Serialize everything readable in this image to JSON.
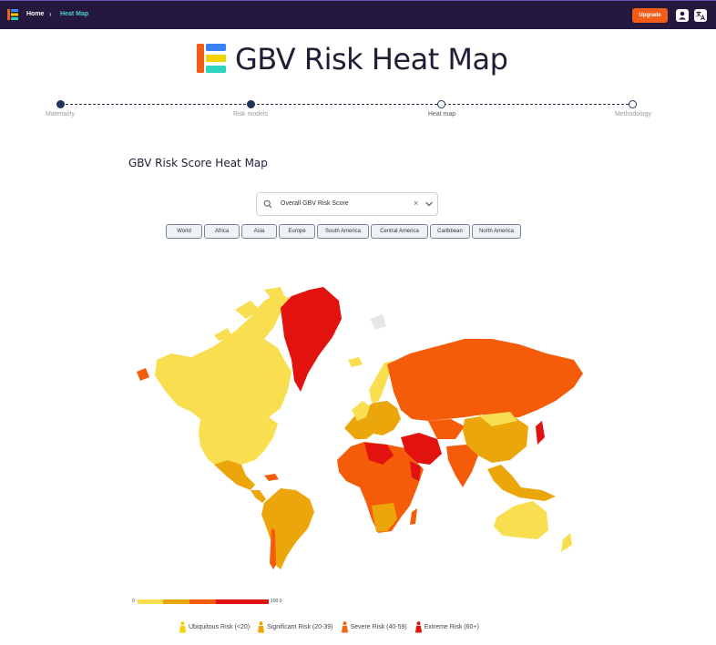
{
  "nav": {
    "home_label": "Home",
    "separator": "›",
    "current_label": "Heat Map",
    "upgrade_label": "Upgrade"
  },
  "page": {
    "title": "GBV Risk Heat Map",
    "section_title": "GBV Risk Score Heat Map"
  },
  "stepper": {
    "steps": [
      {
        "label": "Materiality",
        "state": "done"
      },
      {
        "label": "Risk models",
        "state": "done"
      },
      {
        "label": "Heat map",
        "state": "current"
      },
      {
        "label": "Methodology",
        "state": "todo"
      }
    ]
  },
  "select": {
    "value": "Overall GBV Risk Score",
    "clear_symbol": "×"
  },
  "regions": [
    "World",
    "Africa",
    "Asia",
    "Europe",
    "South America",
    "Central America",
    "Caribbean",
    "North America"
  ],
  "scale": {
    "min_label": "0",
    "max_label": "100.0",
    "colors": [
      "#f9de4f",
      "#eba60b",
      "#f45b0c",
      "#e2120e"
    ]
  },
  "legend": [
    {
      "label": "Ubiquitous Risk (<20)",
      "color": "#f5d100"
    },
    {
      "label": "Significant Risk (20-39)",
      "color": "#f0a500"
    },
    {
      "label": "Severe Risk (40-59)",
      "color": "#f2660e"
    },
    {
      "label": "Extreme Risk (60+)",
      "color": "#e0140f"
    }
  ],
  "colors": {
    "nav_bg": "#24183f",
    "accent": "#f25c19",
    "ubiquitous": "#f9de4f",
    "significant": "#e8a511",
    "severe": "#f45c0a",
    "extreme": "#e2120e",
    "no_data": "#e6e6e6"
  }
}
